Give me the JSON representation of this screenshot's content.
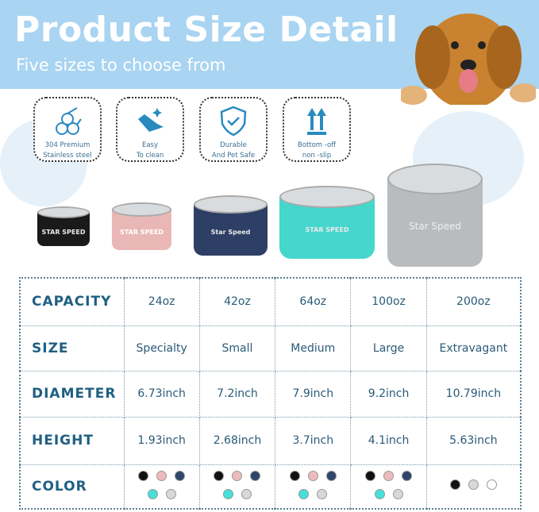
{
  "header": {
    "title": "Product Size Detail",
    "subtitle": "Five sizes to choose from"
  },
  "features": [
    {
      "icon": "steel-pipes-icon",
      "line1": "304 Premium",
      "line2": "Stainless steel"
    },
    {
      "icon": "cleaning-hand-icon",
      "line1": "Easy",
      "line2": "To clean"
    },
    {
      "icon": "shield-check-icon",
      "line1": "Durable",
      "line2": "And Pet Safe"
    },
    {
      "icon": "up-arrows-icon",
      "line1": "Bottom -off",
      "line2": "non -slip"
    }
  ],
  "bowls": [
    {
      "color": "#1a1a1a",
      "label": "STAR SPEED"
    },
    {
      "color": "#e9b7b5",
      "label": "STAR SPEED"
    },
    {
      "color": "#2e3f66",
      "label": "Star Speed"
    },
    {
      "color": "#45d6cc",
      "label": "STAR SPEED"
    },
    {
      "color": "#b9bcbf",
      "label": "Star Speed"
    }
  ],
  "table": {
    "rows": [
      {
        "header": "CAPACITY",
        "values": [
          "24oz",
          "42oz",
          "64oz",
          "100oz",
          "200oz"
        ]
      },
      {
        "header": "SIZE",
        "values": [
          "Specialty",
          "Small",
          "Medium",
          "Large",
          "Extravagant"
        ]
      },
      {
        "header": "DIAMETER",
        "values": [
          "6.73inch",
          "7.2inch",
          "7.9inch",
          "9.2inch",
          "10.79inch"
        ]
      },
      {
        "header": "HEIGHT",
        "values": [
          "1.93inch",
          "2.68inch",
          "3.7inch",
          "4.1inch",
          "5.63inch"
        ]
      }
    ],
    "color_header": "COLOR",
    "colors": [
      [
        "#111111",
        "#ecbcbc",
        "#2f4569",
        "#46e0d8",
        "#d8d8d8"
      ],
      [
        "#111111",
        "#ecbcbc",
        "#2f4569",
        "#46e0d8",
        "#d8d8d8"
      ],
      [
        "#111111",
        "#ecbcbc",
        "#2f4569",
        "#46e0d8",
        "#d8d8d8"
      ],
      [
        "#111111",
        "#ecbcbc",
        "#2f4569",
        "#46e0d8",
        "#d8d8d8"
      ],
      [
        "#111111",
        "#d8d8d8",
        "#ffffff"
      ]
    ]
  }
}
